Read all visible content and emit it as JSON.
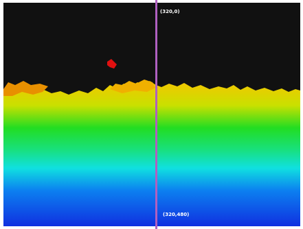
{
  "image": {
    "top_label": "(320,0)",
    "bottom_label": "(320,480)"
  }
}
